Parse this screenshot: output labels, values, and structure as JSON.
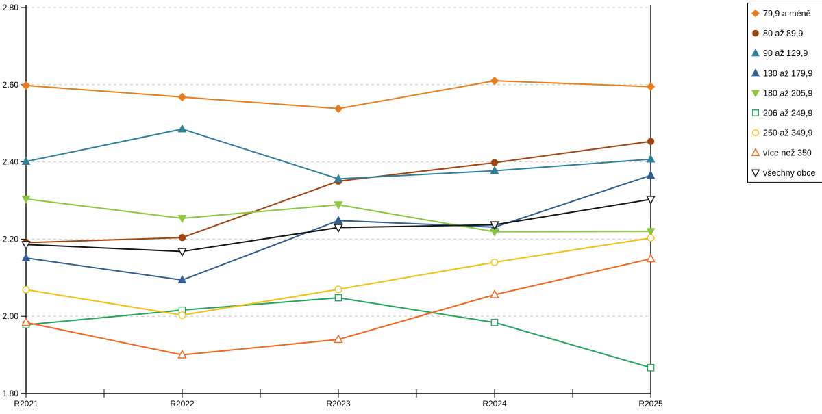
{
  "chart_data": {
    "type": "line",
    "title": "",
    "xlabel": "",
    "ylabel": "",
    "x_tick_labels": [
      "R2021",
      "R2022",
      "R2023",
      "R2024",
      "R2025"
    ],
    "y_tick_labels": [
      "1.80",
      "2.00",
      "2.20",
      "2.40",
      "2.60",
      "2.80"
    ],
    "y_ticks": [
      1.8,
      2.0,
      2.2,
      2.4,
      2.6,
      2.8
    ],
    "ylim": [
      1.8,
      2.8
    ],
    "grid": "horizontal-dashed",
    "grid_color": "#c9c9c9",
    "axis_color": "#000000",
    "legend_position": "top-right-boxed",
    "categories": [
      "R2021",
      "R2022",
      "R2023",
      "R2024",
      "R2025"
    ],
    "series": [
      {
        "name": "79,9 a méně",
        "color": "#E87D1E",
        "marker": "diamond",
        "fill": "filled",
        "values": [
          2.598,
          2.568,
          2.538,
          2.61,
          2.595
        ]
      },
      {
        "name": "80 až 89,9",
        "color": "#A04410",
        "marker": "circle",
        "fill": "filled",
        "values": [
          2.191,
          2.204,
          2.35,
          2.398,
          2.453
        ]
      },
      {
        "name": "90 až 129,9",
        "color": "#2E8099",
        "marker": "triangle-up",
        "fill": "filled",
        "values": [
          2.401,
          2.485,
          2.356,
          2.377,
          2.407
        ]
      },
      {
        "name": "130 až 179,9",
        "color": "#315E8F",
        "marker": "triangle-up",
        "fill": "filled",
        "values": [
          2.151,
          2.094,
          2.248,
          2.231,
          2.365
        ]
      },
      {
        "name": "180 až 205,9",
        "color": "#8CC63F",
        "marker": "triangle-down",
        "fill": "filled",
        "values": [
          2.304,
          2.254,
          2.289,
          2.219,
          2.22
        ]
      },
      {
        "name": "206 až 249,9",
        "color": "#22A45C",
        "marker": "square",
        "fill": "open",
        "values": [
          1.978,
          2.016,
          2.048,
          1.984,
          1.867
        ]
      },
      {
        "name": "250 až 349,9",
        "color": "#F2C012",
        "marker": "circle",
        "fill": "open",
        "values": [
          2.069,
          2.003,
          2.07,
          2.14,
          2.203
        ]
      },
      {
        "name": "více než 350",
        "color": "#F2651D",
        "marker": "triangle-up",
        "fill": "open",
        "values": [
          1.984,
          1.9,
          1.94,
          2.056,
          2.149
        ]
      },
      {
        "name": "všechny obce",
        "color": "#141414",
        "marker": "triangle-down",
        "fill": "open",
        "values": [
          2.186,
          2.168,
          2.23,
          2.237,
          2.303
        ]
      }
    ]
  }
}
